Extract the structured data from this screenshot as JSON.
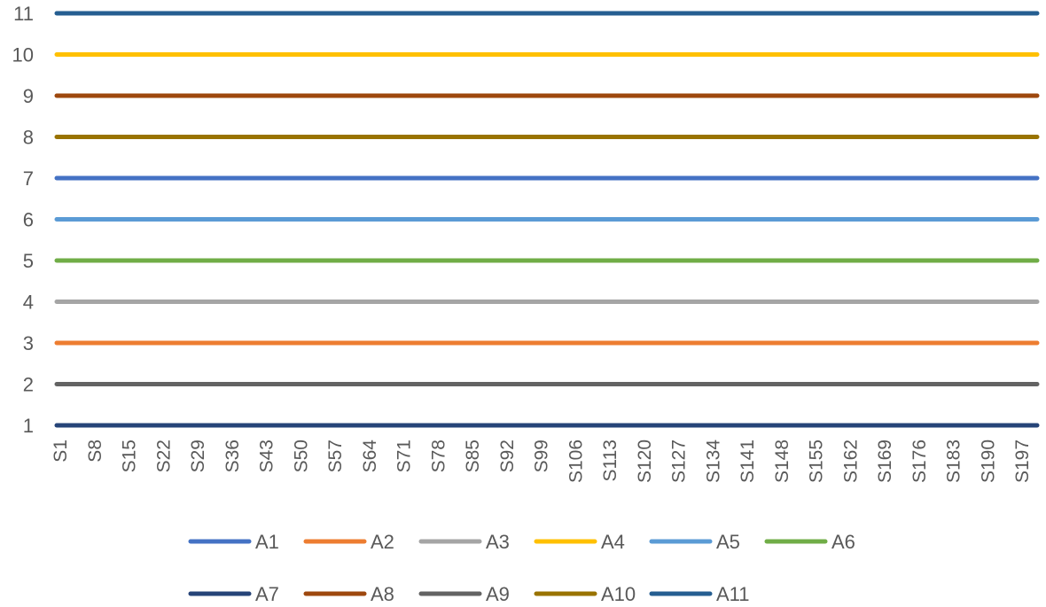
{
  "chart_data": {
    "type": "line",
    "title": "",
    "xlabel": "",
    "ylabel": "",
    "ylim": [
      1,
      11
    ],
    "yticks": [
      1,
      2,
      3,
      4,
      5,
      6,
      7,
      8,
      9,
      10,
      11
    ],
    "grid": false,
    "legend_position": "bottom",
    "x_tick_labels": [
      "S1",
      "S8",
      "S15",
      "S22",
      "S29",
      "S36",
      "S43",
      "S50",
      "S57",
      "S64",
      "S71",
      "S78",
      "S85",
      "S92",
      "S99",
      "S106",
      "S113",
      "S120",
      "S127",
      "S134",
      "S141",
      "S148",
      "S155",
      "S162",
      "S169",
      "S176",
      "S183",
      "S190",
      "S197"
    ],
    "x_range": [
      "S1",
      "S200"
    ],
    "series": [
      {
        "name": "A1",
        "value": 7,
        "color": "#4472C4"
      },
      {
        "name": "A2",
        "value": 3,
        "color": "#ED7D31"
      },
      {
        "name": "A3",
        "value": 4,
        "color": "#A5A5A5"
      },
      {
        "name": "A4",
        "value": 10,
        "color": "#FFC000"
      },
      {
        "name": "A5",
        "value": 6,
        "color": "#5B9BD5"
      },
      {
        "name": "A6",
        "value": 5,
        "color": "#70AD47"
      },
      {
        "name": "A7",
        "value": 1,
        "color": "#264478"
      },
      {
        "name": "A8",
        "value": 9,
        "color": "#9E480E"
      },
      {
        "name": "A9",
        "value": 2,
        "color": "#636363"
      },
      {
        "name": "A10",
        "value": 8,
        "color": "#997300"
      },
      {
        "name": "A11",
        "value": 11,
        "color": "#255E91"
      }
    ]
  }
}
